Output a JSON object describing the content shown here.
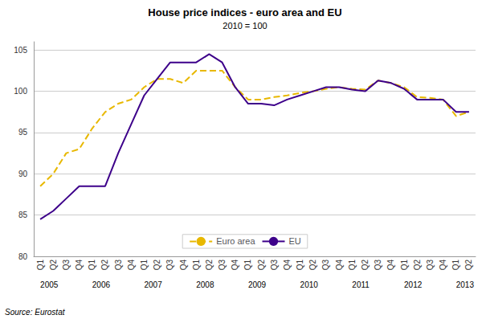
{
  "chart_data": {
    "type": "line",
    "title": "House price indices - euro area and EU",
    "subtitle": "2010 = 100",
    "source": "Source: Eurostat",
    "categories": [
      "Q1",
      "Q2",
      "Q3",
      "Q4",
      "Q1",
      "Q2",
      "Q3",
      "Q4",
      "Q1",
      "Q2",
      "Q3",
      "Q4",
      "Q1",
      "Q2",
      "Q3",
      "Q4",
      "Q1",
      "Q2",
      "Q3",
      "Q4",
      "Q1",
      "Q2",
      "Q3",
      "Q4",
      "Q1",
      "Q2",
      "Q3",
      "Q4",
      "Q1",
      "Q2",
      "Q3",
      "Q4",
      "Q1",
      "Q2"
    ],
    "year_labels": [
      "2005",
      null,
      null,
      null,
      "2006",
      null,
      null,
      null,
      "2007",
      null,
      null,
      null,
      "2008",
      null,
      null,
      null,
      "2009",
      null,
      null,
      null,
      "2010",
      null,
      null,
      null,
      "2011",
      null,
      null,
      null,
      "2012",
      null,
      null,
      null,
      "2013",
      null
    ],
    "series": [
      {
        "name": "Euro area",
        "color": "#e8b800",
        "line_style": "dashed",
        "values": [
          88.5,
          90.0,
          92.5,
          93.0,
          95.5,
          97.5,
          98.5,
          99.0,
          100.5,
          101.5,
          101.5,
          101.0,
          102.5,
          102.5,
          102.5,
          100.5,
          99.0,
          99.0,
          99.3,
          99.5,
          99.8,
          100.0,
          100.3,
          100.5,
          100.3,
          100.2,
          101.3,
          101.0,
          100.5,
          99.3,
          99.2,
          99.0,
          97.0,
          97.5
        ]
      },
      {
        "name": "EU",
        "color": "#3d008a",
        "line_style": "solid",
        "values": [
          84.5,
          85.5,
          87.0,
          88.5,
          88.5,
          88.5,
          92.5,
          96.0,
          99.5,
          101.5,
          103.5,
          103.5,
          103.5,
          104.5,
          103.5,
          100.5,
          98.5,
          98.5,
          98.3,
          99.0,
          99.5,
          100.0,
          100.5,
          100.5,
          100.2,
          100.0,
          101.3,
          101.0,
          100.3,
          99.0,
          99.0,
          99.0,
          97.5,
          97.5
        ]
      }
    ],
    "ylim": [
      80,
      106
    ],
    "yticks": [
      80,
      85,
      90,
      95,
      100,
      105
    ],
    "grid": true,
    "legend": "bottom"
  }
}
